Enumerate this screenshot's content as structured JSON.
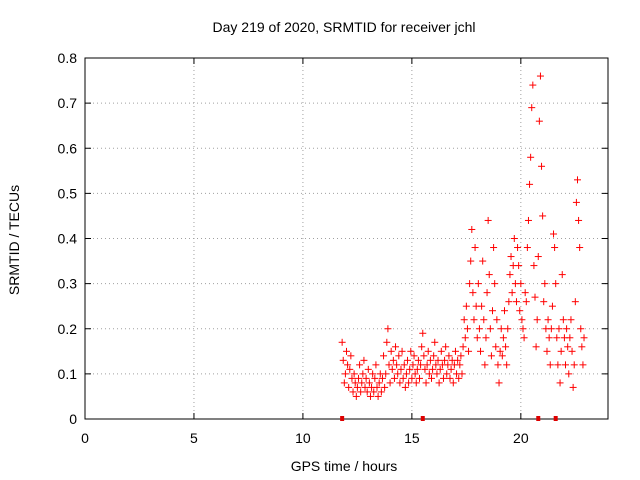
{
  "chart_data": {
    "type": "scatter",
    "title": "Day 219 of 2020, SRMTID for receiver jchl",
    "xlabel": "GPS time / hours",
    "ylabel": "SRMTID / TECUs",
    "xlim": [
      0,
      24
    ],
    "ylim": [
      0,
      0.8
    ],
    "xticks": [
      0,
      5,
      10,
      15,
      20
    ],
    "xtick_labels": [
      "0",
      "5",
      "10",
      "15",
      "20"
    ],
    "yticks": [
      0,
      0.1,
      0.2,
      0.3,
      0.4,
      0.5,
      0.6,
      0.7,
      0.8
    ],
    "ytick_labels": [
      "0",
      "0.1",
      "0.2",
      "0.3",
      "0.4",
      "0.5",
      "0.6",
      "0.7",
      "0.8"
    ],
    "grid": true,
    "marker_color": "#ff0000",
    "series": [
      {
        "name": "SRMTID",
        "marker": "+",
        "points": [
          [
            11.8,
            0.17
          ],
          [
            11.85,
            0.13
          ],
          [
            11.9,
            0.08
          ],
          [
            11.95,
            0.1
          ],
          [
            12.0,
            0.15
          ],
          [
            12.05,
            0.12
          ],
          [
            12.1,
            0.07
          ],
          [
            12.15,
            0.11
          ],
          [
            12.2,
            0.14
          ],
          [
            12.25,
            0.09
          ],
          [
            12.3,
            0.06
          ],
          [
            12.35,
            0.1
          ],
          [
            12.4,
            0.08
          ],
          [
            12.45,
            0.05
          ],
          [
            12.5,
            0.07
          ],
          [
            12.55,
            0.09
          ],
          [
            12.6,
            0.12
          ],
          [
            12.65,
            0.06
          ],
          [
            12.7,
            0.08
          ],
          [
            12.75,
            0.1
          ],
          [
            12.8,
            0.13
          ],
          [
            12.85,
            0.07
          ],
          [
            12.9,
            0.09
          ],
          [
            12.95,
            0.06
          ],
          [
            13.0,
            0.11
          ],
          [
            13.05,
            0.08
          ],
          [
            13.1,
            0.05
          ],
          [
            13.15,
            0.07
          ],
          [
            13.2,
            0.1
          ],
          [
            13.25,
            0.06
          ],
          [
            13.3,
            0.09
          ],
          [
            13.35,
            0.12
          ],
          [
            13.4,
            0.07
          ],
          [
            13.45,
            0.05
          ],
          [
            13.5,
            0.08
          ],
          [
            13.55,
            0.1
          ],
          [
            13.6,
            0.06
          ],
          [
            13.65,
            0.09
          ],
          [
            13.7,
            0.14
          ],
          [
            13.75,
            0.07
          ],
          [
            13.8,
            0.1
          ],
          [
            13.85,
            0.17
          ],
          [
            13.9,
            0.2
          ],
          [
            13.95,
            0.12
          ],
          [
            14.0,
            0.08
          ],
          [
            14.05,
            0.15
          ],
          [
            14.1,
            0.11
          ],
          [
            14.15,
            0.13
          ],
          [
            14.2,
            0.09
          ],
          [
            14.25,
            0.16
          ],
          [
            14.3,
            0.12
          ],
          [
            14.35,
            0.1
          ],
          [
            14.4,
            0.14
          ],
          [
            14.45,
            0.08
          ],
          [
            14.5,
            0.11
          ],
          [
            14.55,
            0.15
          ],
          [
            14.6,
            0.09
          ],
          [
            14.65,
            0.12
          ],
          [
            14.7,
            0.07
          ],
          [
            14.75,
            0.1
          ],
          [
            14.8,
            0.13
          ],
          [
            14.85,
            0.08
          ],
          [
            14.9,
            0.11
          ],
          [
            14.95,
            0.15
          ],
          [
            15.0,
            0.09
          ],
          [
            15.05,
            0.12
          ],
          [
            15.1,
            0.14
          ],
          [
            15.15,
            0.1
          ],
          [
            15.2,
            0.08
          ],
          [
            15.25,
            0.11
          ],
          [
            15.3,
            0.13
          ],
          [
            15.35,
            0.09
          ],
          [
            15.4,
            0.12
          ],
          [
            15.45,
            0.16
          ],
          [
            15.5,
            0.19
          ],
          [
            15.55,
            0.14
          ],
          [
            15.6,
            0.11
          ],
          [
            15.65,
            0.08
          ],
          [
            15.7,
            0.12
          ],
          [
            15.75,
            0.15
          ],
          [
            15.8,
            0.1
          ],
          [
            15.85,
            0.13
          ],
          [
            15.9,
            0.09
          ],
          [
            15.95,
            0.11
          ],
          [
            16.0,
            0.14
          ],
          [
            16.05,
            0.17
          ],
          [
            16.1,
            0.12
          ],
          [
            16.15,
            0.1
          ],
          [
            16.2,
            0.13
          ],
          [
            16.25,
            0.08
          ],
          [
            16.3,
            0.11
          ],
          [
            16.35,
            0.15
          ],
          [
            16.4,
            0.12
          ],
          [
            16.45,
            0.09
          ],
          [
            16.5,
            0.13
          ],
          [
            16.55,
            0.16
          ],
          [
            16.6,
            0.1
          ],
          [
            16.65,
            0.12
          ],
          [
            16.7,
            0.14
          ],
          [
            16.75,
            0.09
          ],
          [
            16.8,
            0.11
          ],
          [
            16.85,
            0.13
          ],
          [
            16.9,
            0.08
          ],
          [
            16.95,
            0.12
          ],
          [
            17.0,
            0.15
          ],
          [
            17.05,
            0.1
          ],
          [
            17.1,
            0.13
          ],
          [
            17.15,
            0.09
          ],
          [
            17.2,
            0.12
          ],
          [
            17.25,
            0.14
          ],
          [
            17.3,
            0.1
          ],
          [
            17.35,
            0.16
          ],
          [
            17.4,
            0.22
          ],
          [
            17.45,
            0.18
          ],
          [
            17.5,
            0.25
          ],
          [
            17.55,
            0.2
          ],
          [
            17.6,
            0.15
          ],
          [
            17.65,
            0.3
          ],
          [
            17.7,
            0.35
          ],
          [
            17.75,
            0.42
          ],
          [
            17.8,
            0.28
          ],
          [
            17.85,
            0.22
          ],
          [
            17.9,
            0.38
          ],
          [
            17.95,
            0.25
          ],
          [
            18.0,
            0.18
          ],
          [
            18.05,
            0.3
          ],
          [
            18.1,
            0.2
          ],
          [
            18.15,
            0.15
          ],
          [
            18.2,
            0.25
          ],
          [
            18.25,
            0.35
          ],
          [
            18.3,
            0.22
          ],
          [
            18.35,
            0.12
          ],
          [
            18.4,
            0.18
          ],
          [
            18.45,
            0.28
          ],
          [
            18.5,
            0.44
          ],
          [
            18.55,
            0.32
          ],
          [
            18.6,
            0.2
          ],
          [
            18.65,
            0.14
          ],
          [
            18.7,
            0.24
          ],
          [
            18.75,
            0.38
          ],
          [
            18.8,
            0.3
          ],
          [
            18.85,
            0.16
          ],
          [
            18.9,
            0.22
          ],
          [
            18.95,
            0.12
          ],
          [
            19.0,
            0.08
          ],
          [
            19.05,
            0.15
          ],
          [
            19.1,
            0.2
          ],
          [
            19.15,
            0.14
          ],
          [
            19.2,
            0.18
          ],
          [
            19.25,
            0.24
          ],
          [
            19.3,
            0.16
          ],
          [
            19.35,
            0.12
          ],
          [
            19.4,
            0.2
          ],
          [
            19.45,
            0.26
          ],
          [
            19.5,
            0.32
          ],
          [
            19.55,
            0.36
          ],
          [
            19.6,
            0.28
          ],
          [
            19.65,
            0.34
          ],
          [
            19.7,
            0.4
          ],
          [
            19.75,
            0.3
          ],
          [
            19.8,
            0.26
          ],
          [
            19.85,
            0.38
          ],
          [
            19.9,
            0.34
          ],
          [
            19.95,
            0.24
          ],
          [
            20.0,
            0.3
          ],
          [
            20.05,
            0.22
          ],
          [
            20.1,
            0.2
          ],
          [
            20.15,
            0.18
          ],
          [
            20.2,
            0.28
          ],
          [
            20.25,
            0.26
          ],
          [
            20.3,
            0.38
          ],
          [
            20.35,
            0.44
          ],
          [
            20.4,
            0.52
          ],
          [
            20.45,
            0.58
          ],
          [
            20.5,
            0.69
          ],
          [
            20.55,
            0.74
          ],
          [
            20.6,
            0.34
          ],
          [
            20.65,
            0.27
          ],
          [
            20.7,
            0.16
          ],
          [
            20.75,
            0.22
          ],
          [
            20.8,
            0.36
          ],
          [
            20.85,
            0.66
          ],
          [
            20.9,
            0.76
          ],
          [
            20.95,
            0.56
          ],
          [
            21.0,
            0.45
          ],
          [
            21.05,
            0.26
          ],
          [
            21.1,
            0.3
          ],
          [
            21.15,
            0.2
          ],
          [
            21.2,
            0.15
          ],
          [
            21.25,
            0.22
          ],
          [
            21.3,
            0.18
          ],
          [
            21.35,
            0.12
          ],
          [
            21.4,
            0.2
          ],
          [
            21.45,
            0.25
          ],
          [
            21.5,
            0.41
          ],
          [
            21.55,
            0.38
          ],
          [
            21.6,
            0.3
          ],
          [
            21.65,
            0.18
          ],
          [
            21.7,
            0.12
          ],
          [
            21.75,
            0.2
          ],
          [
            21.8,
            0.08
          ],
          [
            21.85,
            0.15
          ],
          [
            21.9,
            0.32
          ],
          [
            21.95,
            0.22
          ],
          [
            22.0,
            0.18
          ],
          [
            22.05,
            0.12
          ],
          [
            22.1,
            0.2
          ],
          [
            22.15,
            0.16
          ],
          [
            22.2,
            0.1
          ],
          [
            22.25,
            0.18
          ],
          [
            22.3,
            0.22
          ],
          [
            22.35,
            0.15
          ],
          [
            22.4,
            0.07
          ],
          [
            22.45,
            0.12
          ],
          [
            22.5,
            0.26
          ],
          [
            22.55,
            0.48
          ],
          [
            22.6,
            0.53
          ],
          [
            22.65,
            0.44
          ],
          [
            22.7,
            0.38
          ],
          [
            22.75,
            0.2
          ],
          [
            22.8,
            0.16
          ],
          [
            22.85,
            0.12
          ],
          [
            22.9,
            0.18
          ]
        ]
      }
    ],
    "axis_markers_x": [
      11.8,
      15.5,
      20.8,
      21.6
    ]
  }
}
